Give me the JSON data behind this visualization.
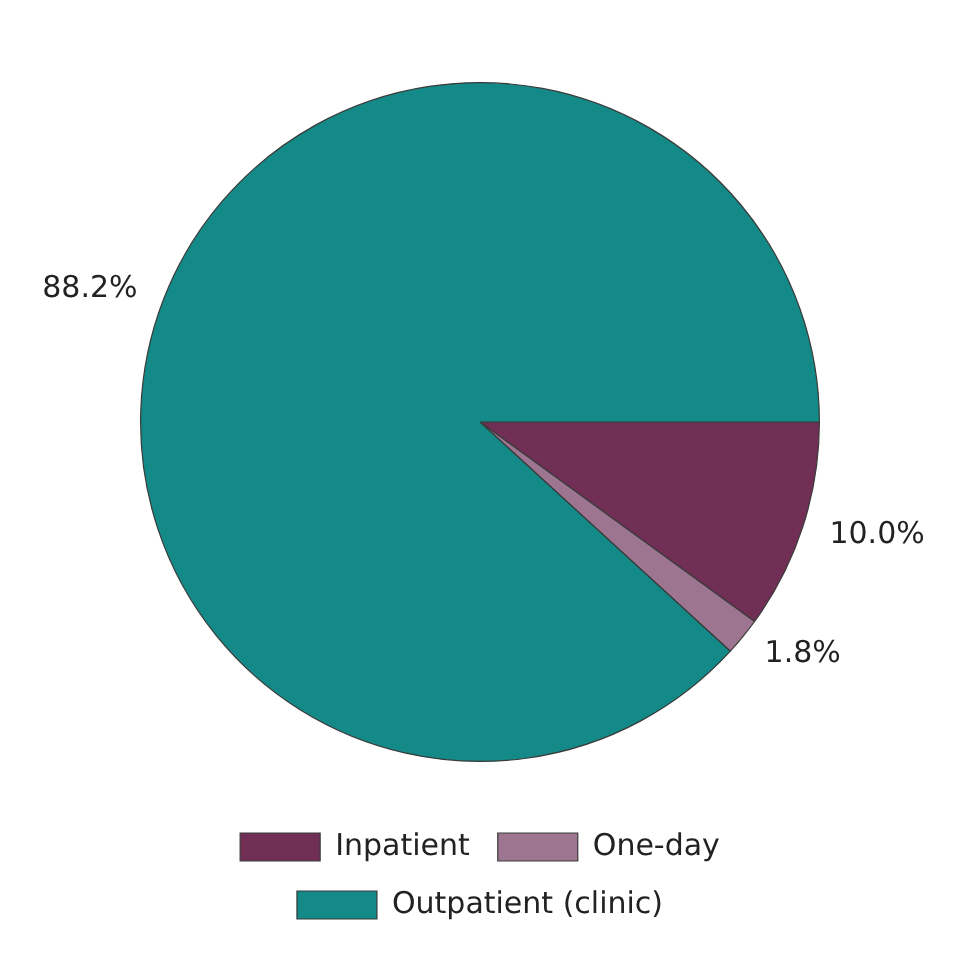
{
  "chart_data": {
    "type": "pie",
    "categories": [
      "Inpatient",
      "One-day",
      "Outpatient (clinic)"
    ],
    "values": [
      10.0,
      1.8,
      88.2
    ],
    "colors": [
      "#722f55",
      "#9e7590",
      "#138a87"
    ],
    "value_labels": [
      "10.0%",
      "1.8%",
      "88.2%"
    ],
    "legend": "bottom"
  }
}
